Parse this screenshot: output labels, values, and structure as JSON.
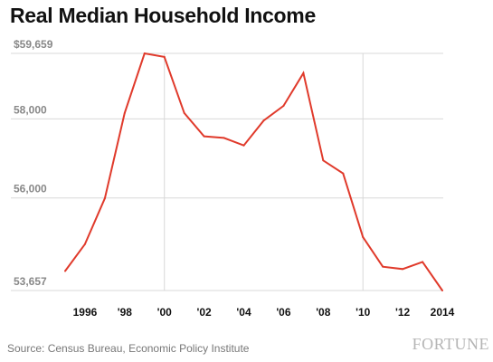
{
  "title": "Real Median Household Income",
  "source": "Source: Census Bureau, Economic Policy Institute",
  "brand": "FORTUNE",
  "colors": {
    "line": "#e03a2b",
    "grid": "#d8d8d8",
    "ytick": "#888888",
    "xtick": "#111111"
  },
  "chart_data": {
    "type": "line",
    "title": "Real Median Household Income",
    "xlabel": "",
    "ylabel": "",
    "grid": true,
    "ylim": [
      53657,
      59659
    ],
    "xlim": [
      1995,
      2014
    ],
    "y_ticks": [
      {
        "value": 59659,
        "label": "$59,659"
      },
      {
        "value": 58000,
        "label": "58,000"
      },
      {
        "value": 56000,
        "label": "56,000"
      },
      {
        "value": 53657,
        "label": "53,657"
      }
    ],
    "x_ticks": [
      {
        "value": 1996,
        "label": "1996"
      },
      {
        "value": 1998,
        "label": "'98"
      },
      {
        "value": 2000,
        "label": "'00"
      },
      {
        "value": 2002,
        "label": "'02"
      },
      {
        "value": 2004,
        "label": "'04"
      },
      {
        "value": 2006,
        "label": "'06"
      },
      {
        "value": 2008,
        "label": "'08"
      },
      {
        "value": 2010,
        "label": "'10"
      },
      {
        "value": 2012,
        "label": "'12"
      },
      {
        "value": 2014,
        "label": "2014"
      }
    ],
    "vertical_gridlines_at": [
      2000,
      2010
    ],
    "series": [
      {
        "x": [
          1995,
          1996,
          1997,
          1998,
          1999,
          2000,
          2001,
          2002,
          2003,
          2004,
          2005,
          2006,
          2007,
          2008,
          2009,
          2010,
          2011,
          2012,
          2013,
          2014
        ],
        "values": [
          54150,
          54830,
          55990,
          58150,
          59659,
          59570,
          58150,
          57560,
          57520,
          57330,
          57960,
          58330,
          59160,
          56950,
          56620,
          55010,
          54260,
          54200,
          54380,
          53657
        ]
      }
    ]
  }
}
